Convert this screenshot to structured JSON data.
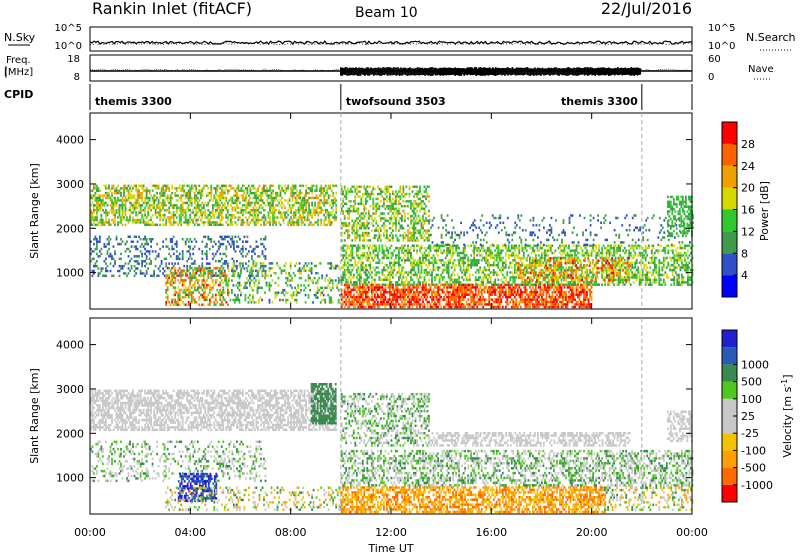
{
  "header": {
    "station": "Rankin Inlet (fitACF)",
    "beam": "Beam 10",
    "date": "22/Jul/2016"
  },
  "nsky_panel": {
    "left_label": "N.Sky",
    "left_ticks": [
      "10^5",
      "10^0"
    ],
    "right_label": "N.Search",
    "right_ticks": [
      "10^5",
      "10^0"
    ],
    "nsky_level": 0.35,
    "nsearch_level": 0.3
  },
  "freq_panel": {
    "left_label_top": "Freq.",
    "left_label_bottom": "[MHz]",
    "left_ticks": [
      "18",
      "8"
    ],
    "right_label": "Nave",
    "right_ticks": [
      "60",
      "0"
    ]
  },
  "cpid": {
    "label": "CPID",
    "segments": [
      {
        "start": 0,
        "end": 10,
        "name": "themis 3300"
      },
      {
        "start": 10,
        "end": 22,
        "name": "twofsound 3503"
      },
      {
        "start": 22,
        "end": 24,
        "name": "themis 3300"
      }
    ]
  },
  "colors": {
    "power": [
      "#0000ff",
      "#2f50c8",
      "#3f9a4a",
      "#2ec830",
      "#d8d800",
      "#f0a000",
      "#ff6000",
      "#ff0000"
    ],
    "velocity": [
      "#ff0000",
      "#ff6a00",
      "#ffa000",
      "#f2c400",
      "#c8c8c8",
      "#c8c8c8",
      "#50c820",
      "#3a8a50",
      "#2a5ab8",
      "#2020d0"
    ]
  },
  "chart_data": [
    {
      "type": "heatmap",
      "name": "power",
      "ylabel": "Slant Range [km]",
      "xlim": [
        0,
        24
      ],
      "ylim": [
        180,
        4600
      ],
      "yticks": [
        1000,
        2000,
        3000,
        4000
      ],
      "colorbar_label": "Power [dB]",
      "colorbar_ticks": [
        "4",
        "8",
        "12",
        "16",
        "20",
        "24",
        "28"
      ],
      "clim": [
        0,
        32
      ],
      "regions": [
        {
          "t0": 0.0,
          "t1": 9.8,
          "r0": 2050,
          "r1": 2950,
          "v0": 8,
          "v1": 24,
          "density": 0.55
        },
        {
          "t0": 0.0,
          "t1": 7.0,
          "r0": 900,
          "r1": 1800,
          "v0": 4,
          "v1": 12,
          "density": 0.25
        },
        {
          "t0": 3.0,
          "t1": 5.5,
          "r0": 250,
          "r1": 1100,
          "v0": 10,
          "v1": 30,
          "density": 0.5
        },
        {
          "t0": 5.5,
          "t1": 10.0,
          "r0": 300,
          "r1": 1200,
          "v0": 6,
          "v1": 20,
          "density": 0.25
        },
        {
          "t0": 10.0,
          "t1": 13.5,
          "r0": 1700,
          "r1": 2950,
          "v0": 8,
          "v1": 22,
          "density": 0.45
        },
        {
          "t0": 10.0,
          "t1": 20.0,
          "r0": 200,
          "r1": 700,
          "v0": 22,
          "v1": 32,
          "density": 0.7
        },
        {
          "t0": 10.0,
          "t1": 24.0,
          "r0": 700,
          "r1": 1600,
          "v0": 8,
          "v1": 20,
          "density": 0.5
        },
        {
          "t0": 17.0,
          "t1": 21.5,
          "r0": 800,
          "r1": 1300,
          "v0": 16,
          "v1": 30,
          "density": 0.35
        },
        {
          "t0": 13.5,
          "t1": 24.0,
          "r0": 1600,
          "r1": 2300,
          "v0": 4,
          "v1": 12,
          "density": 0.12
        },
        {
          "t0": 23.0,
          "t1": 24.0,
          "r0": 1800,
          "r1": 2700,
          "v0": 8,
          "v1": 16,
          "density": 0.5
        }
      ]
    },
    {
      "type": "heatmap",
      "name": "velocity",
      "ylabel": "Slant Range [km]",
      "xlabel": "Time UT",
      "xlim": [
        0,
        24
      ],
      "xticks": [
        "00:00",
        "04:00",
        "08:00",
        "12:00",
        "16:00",
        "20:00",
        "00:00"
      ],
      "ylim": [
        180,
        4600
      ],
      "yticks": [
        1000,
        2000,
        3000,
        4000
      ],
      "colorbar_label": "Velocity [m s^-1]",
      "colorbar_ticks": [
        "-1000",
        "-500",
        "-100",
        "-25",
        "25",
        "100",
        "500",
        "1000"
      ],
      "regions": [
        {
          "t0": 0.0,
          "t1": 9.8,
          "r0": 2050,
          "r1": 2950,
          "c": [
            4,
            5
          ],
          "density": 0.6
        },
        {
          "t0": 8.8,
          "t1": 9.8,
          "r0": 2200,
          "r1": 3100,
          "c": [
            7,
            7
          ],
          "density": 0.75
        },
        {
          "t0": 0.0,
          "t1": 7.0,
          "r0": 900,
          "r1": 1800,
          "c": [
            4,
            7
          ],
          "density": 0.25
        },
        {
          "t0": 3.5,
          "t1": 5.0,
          "r0": 450,
          "r1": 1100,
          "c": [
            8,
            9
          ],
          "density": 0.6
        },
        {
          "t0": 3.0,
          "t1": 10.0,
          "r0": 250,
          "r1": 800,
          "c": [
            2,
            7
          ],
          "density": 0.25
        },
        {
          "t0": 10.0,
          "t1": 13.5,
          "r0": 1700,
          "r1": 2900,
          "c": [
            4,
            7
          ],
          "density": 0.4
        },
        {
          "t0": 10.0,
          "t1": 20.5,
          "r0": 200,
          "r1": 800,
          "c": [
            1,
            3
          ],
          "density": 0.6
        },
        {
          "t0": 10.0,
          "t1": 24.0,
          "r0": 800,
          "r1": 1600,
          "c": [
            4,
            7
          ],
          "density": 0.45
        },
        {
          "t0": 13.5,
          "t1": 21.5,
          "r0": 1700,
          "r1": 2000,
          "c": [
            4,
            5
          ],
          "density": 0.5
        },
        {
          "t0": 20.5,
          "t1": 24.0,
          "r0": 250,
          "r1": 800,
          "c": [
            2,
            7
          ],
          "density": 0.3
        },
        {
          "t0": 23.0,
          "t1": 24.0,
          "r0": 1800,
          "r1": 2500,
          "c": [
            4,
            5
          ],
          "density": 0.5
        }
      ]
    }
  ]
}
